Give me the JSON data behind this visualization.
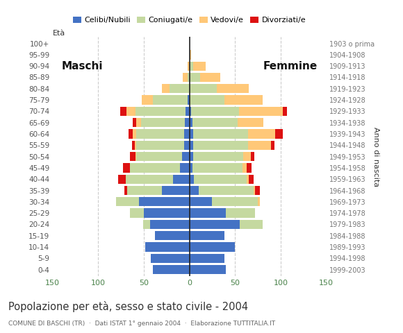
{
  "age_groups": [
    "0-4",
    "5-9",
    "10-14",
    "15-19",
    "20-24",
    "25-29",
    "30-34",
    "35-39",
    "40-44",
    "45-49",
    "50-54",
    "55-59",
    "60-64",
    "65-69",
    "70-74",
    "75-79",
    "80-84",
    "85-89",
    "90-94",
    "95-99",
    "100+"
  ],
  "birth_years": [
    "1999-2003",
    "1994-1998",
    "1989-1993",
    "1984-1988",
    "1979-1983",
    "1974-1978",
    "1969-1973",
    "1964-1968",
    "1959-1963",
    "1954-1958",
    "1949-1953",
    "1944-1948",
    "1939-1943",
    "1934-1938",
    "1929-1933",
    "1924-1928",
    "1919-1923",
    "1914-1918",
    "1909-1913",
    "1904-1908",
    "1903 o prima"
  ],
  "male_celibe": [
    40,
    42,
    48,
    38,
    43,
    50,
    55,
    30,
    18,
    10,
    8,
    6,
    6,
    5,
    4,
    2,
    0,
    0,
    0,
    0,
    0
  ],
  "male_coniugato": [
    0,
    0,
    0,
    0,
    8,
    15,
    25,
    38,
    52,
    55,
    50,
    52,
    52,
    48,
    55,
    38,
    22,
    2,
    0,
    0,
    0
  ],
  "male_vedovo": [
    0,
    0,
    0,
    0,
    0,
    0,
    0,
    0,
    0,
    0,
    1,
    2,
    4,
    5,
    10,
    12,
    8,
    5,
    2,
    0,
    0
  ],
  "male_divorziato": [
    0,
    0,
    0,
    0,
    0,
    0,
    0,
    3,
    8,
    8,
    6,
    3,
    5,
    4,
    7,
    0,
    0,
    0,
    0,
    0,
    0
  ],
  "female_nubile": [
    40,
    38,
    50,
    38,
    55,
    40,
    25,
    10,
    5,
    3,
    4,
    4,
    4,
    3,
    2,
    0,
    0,
    0,
    0,
    0,
    0
  ],
  "female_coniugata": [
    0,
    0,
    0,
    0,
    25,
    32,
    50,
    60,
    58,
    55,
    55,
    60,
    60,
    50,
    52,
    38,
    30,
    12,
    4,
    0,
    0
  ],
  "female_vedova": [
    0,
    0,
    0,
    0,
    0,
    0,
    2,
    2,
    2,
    5,
    8,
    25,
    30,
    28,
    48,
    42,
    35,
    22,
    14,
    2,
    0
  ],
  "female_divorziata": [
    0,
    0,
    0,
    0,
    0,
    0,
    0,
    5,
    5,
    5,
    4,
    4,
    8,
    0,
    5,
    0,
    0,
    0,
    0,
    0,
    0
  ],
  "colors": {
    "celibe": "#4472c4",
    "coniugato": "#c5d9a0",
    "vedovo": "#ffc878",
    "divorziato": "#dd1111"
  },
  "xlim": 150,
  "title": "Popolazione per età, sesso e stato civile - 2004",
  "subtitle": "COMUNE DI BASCHI (TR)  ·  Dati ISTAT 1° gennaio 2004  ·  Elaborazione TUTTITALIA.IT",
  "label_maschi": "Maschi",
  "label_femmine": "Femmine",
  "legend_labels": [
    "Celibi/Nubili",
    "Coniugati/e",
    "Vedovi/e",
    "Divorziati/e"
  ],
  "bg_color": "#ffffff",
  "bar_height": 0.82,
  "xtick_color": "#4a824a",
  "axis_label_color": "#333333",
  "birth_year_color": "#777777",
  "age_label_color": "#555555"
}
